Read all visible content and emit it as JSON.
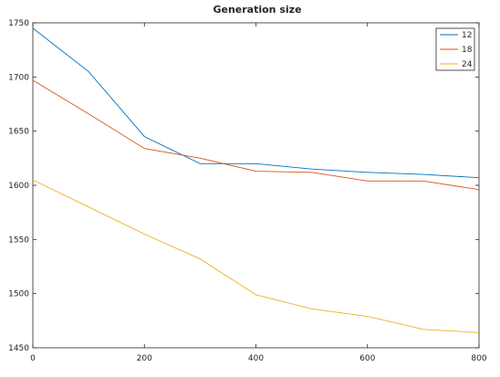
{
  "chart_data": {
    "type": "line",
    "title": "Generation size",
    "xlabel": "",
    "ylabel": "",
    "xlim": [
      0,
      800
    ],
    "ylim": [
      1450,
      1750
    ],
    "xticks": [
      0,
      200,
      400,
      600,
      800
    ],
    "yticks": [
      1450,
      1500,
      1550,
      1600,
      1650,
      1700,
      1750
    ],
    "grid": false,
    "legend_position": "top-right",
    "x": [
      0,
      100,
      200,
      300,
      400,
      500,
      600,
      700,
      800
    ],
    "series": [
      {
        "name": "12",
        "color": "#0072bd",
        "values": [
          1745,
          1705,
          1645,
          1620,
          1620,
          1615,
          1612,
          1610,
          1607
        ]
      },
      {
        "name": "18",
        "color": "#d95319",
        "values": [
          1697,
          1666,
          1634,
          1625,
          1613,
          1612,
          1604,
          1604,
          1596
        ]
      },
      {
        "name": "24",
        "color": "#edb120",
        "values": [
          1605,
          1580,
          1555,
          1532,
          1499,
          1486,
          1479,
          1467,
          1464
        ]
      }
    ]
  }
}
